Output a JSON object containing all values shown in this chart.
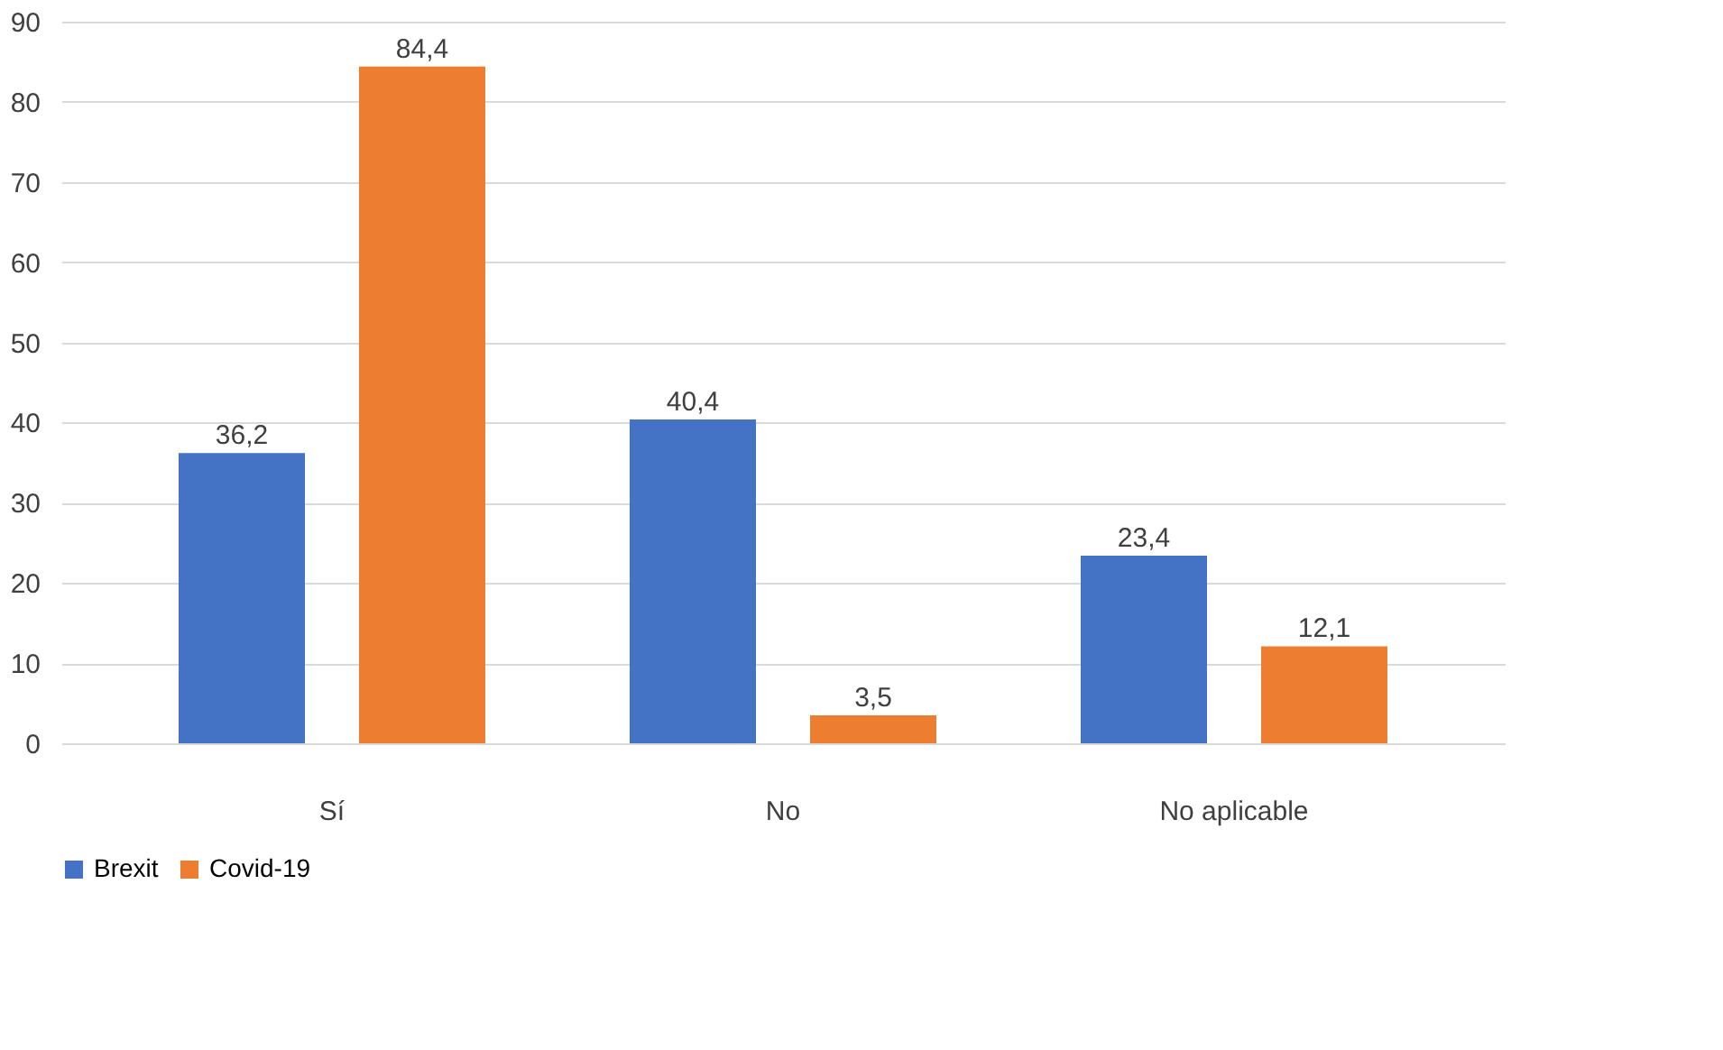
{
  "chart_data": {
    "type": "bar",
    "categories": [
      "Sí",
      "No",
      "No aplicable"
    ],
    "series": [
      {
        "name": "Brexit",
        "color": "#4472c4",
        "values": [
          36.2,
          40.4,
          23.4
        ],
        "value_labels": [
          "36,2",
          "40,4",
          "23,4"
        ]
      },
      {
        "name": "Covid-19",
        "color": "#ed7d31",
        "values": [
          84.4,
          3.5,
          12.1
        ],
        "value_labels": [
          "84,4",
          "3,5",
          "12,1"
        ]
      }
    ],
    "ylim": [
      0,
      90
    ],
    "yticks": [
      0,
      10,
      20,
      30,
      40,
      50,
      60,
      70,
      80,
      90
    ],
    "grid": "y",
    "legend": "bottom"
  }
}
